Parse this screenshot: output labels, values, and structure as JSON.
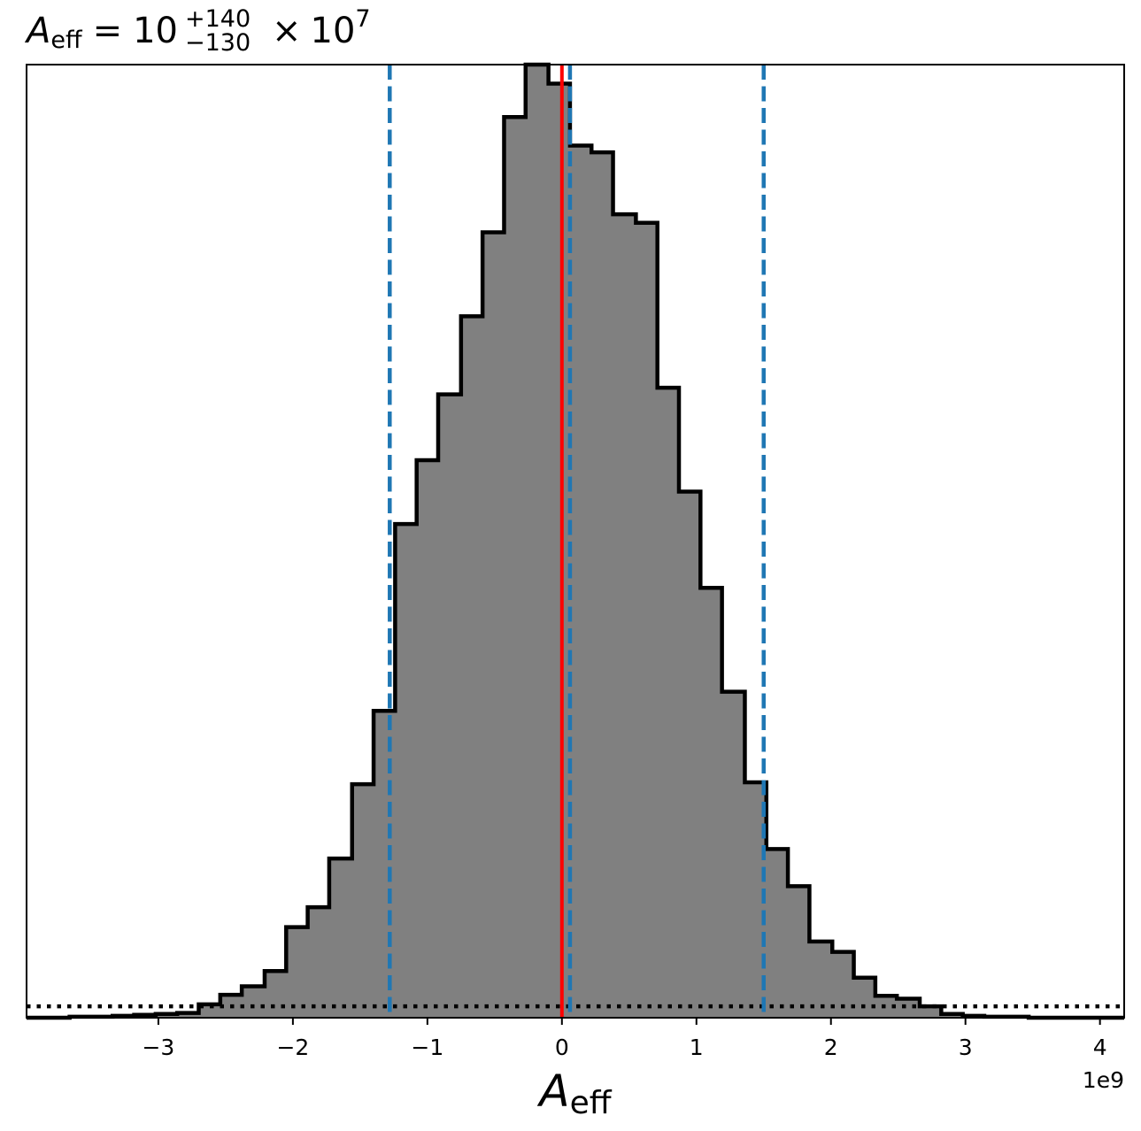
{
  "chart_data": {
    "type": "bar",
    "title": {
      "symbol": "A",
      "symbol_sub": "eff",
      "equals": "=",
      "base": "10",
      "err_plus": "+140",
      "err_minus": "−130",
      "times": "×",
      "scale_base": "10",
      "scale_exp": "7"
    },
    "xlabel": {
      "symbol": "A",
      "sub": "eff"
    },
    "x_offset_label": "1e9",
    "x_unit_multiplier": 1000000000,
    "xlim": [
      -3.98,
      4.18
    ],
    "ylim": [
      0,
      1
    ],
    "grid": false,
    "legend": "none",
    "xticks": [
      {
        "value": -3,
        "label": "−3"
      },
      {
        "value": -2,
        "label": "−2"
      },
      {
        "value": -1,
        "label": "−1"
      },
      {
        "value": 0,
        "label": "0"
      },
      {
        "value": 1,
        "label": "1"
      },
      {
        "value": 2,
        "label": "2"
      },
      {
        "value": 3,
        "label": "3"
      },
      {
        "value": 4,
        "label": "4"
      }
    ],
    "histogram": {
      "bin_edges": [
        -3.98,
        -3.82,
        -3.66,
        -3.5,
        -3.34,
        -3.18,
        -3.02,
        -2.86,
        -2.7,
        -2.54,
        -2.38,
        -2.21,
        -2.05,
        -1.89,
        -1.73,
        -1.56,
        -1.4,
        -1.24,
        -1.08,
        -0.92,
        -0.75,
        -0.59,
        -0.43,
        -0.27,
        -0.1,
        0.06,
        0.22,
        0.38,
        0.55,
        0.71,
        0.87,
        1.03,
        1.19,
        1.36,
        1.52,
        1.68,
        1.84,
        2.01,
        2.17,
        2.33,
        2.49,
        2.66,
        2.82,
        2.98,
        3.14,
        3.3,
        3.47,
        3.63,
        3.79,
        3.95,
        4.11,
        4.18
      ],
      "counts": [
        0.0,
        0.0,
        0.001,
        0.001,
        0.002,
        0.003,
        0.004,
        0.005,
        0.014,
        0.024,
        0.033,
        0.049,
        0.095,
        0.116,
        0.167,
        0.245,
        0.322,
        0.518,
        0.585,
        0.654,
        0.736,
        0.824,
        0.945,
        1.0,
        0.98,
        0.915,
        0.908,
        0.843,
        0.834,
        0.661,
        0.552,
        0.451,
        0.342,
        0.247,
        0.177,
        0.138,
        0.08,
        0.069,
        0.042,
        0.023,
        0.02,
        0.012,
        0.004,
        0.002,
        0.001,
        0.001,
        0.0,
        0.0,
        0.0,
        0.0,
        0.0
      ],
      "fill_color": "#808080",
      "edge_color": "#000000"
    },
    "quantile_lines": {
      "values": [
        -1.28,
        0.06,
        1.5
      ],
      "color": "#1f77b4",
      "style": "dashed"
    },
    "truth_line": {
      "value": 0.0,
      "color": "#ff0000"
    },
    "prior_line": {
      "level": 0.012,
      "color": "#000000",
      "style": "dotted"
    }
  }
}
